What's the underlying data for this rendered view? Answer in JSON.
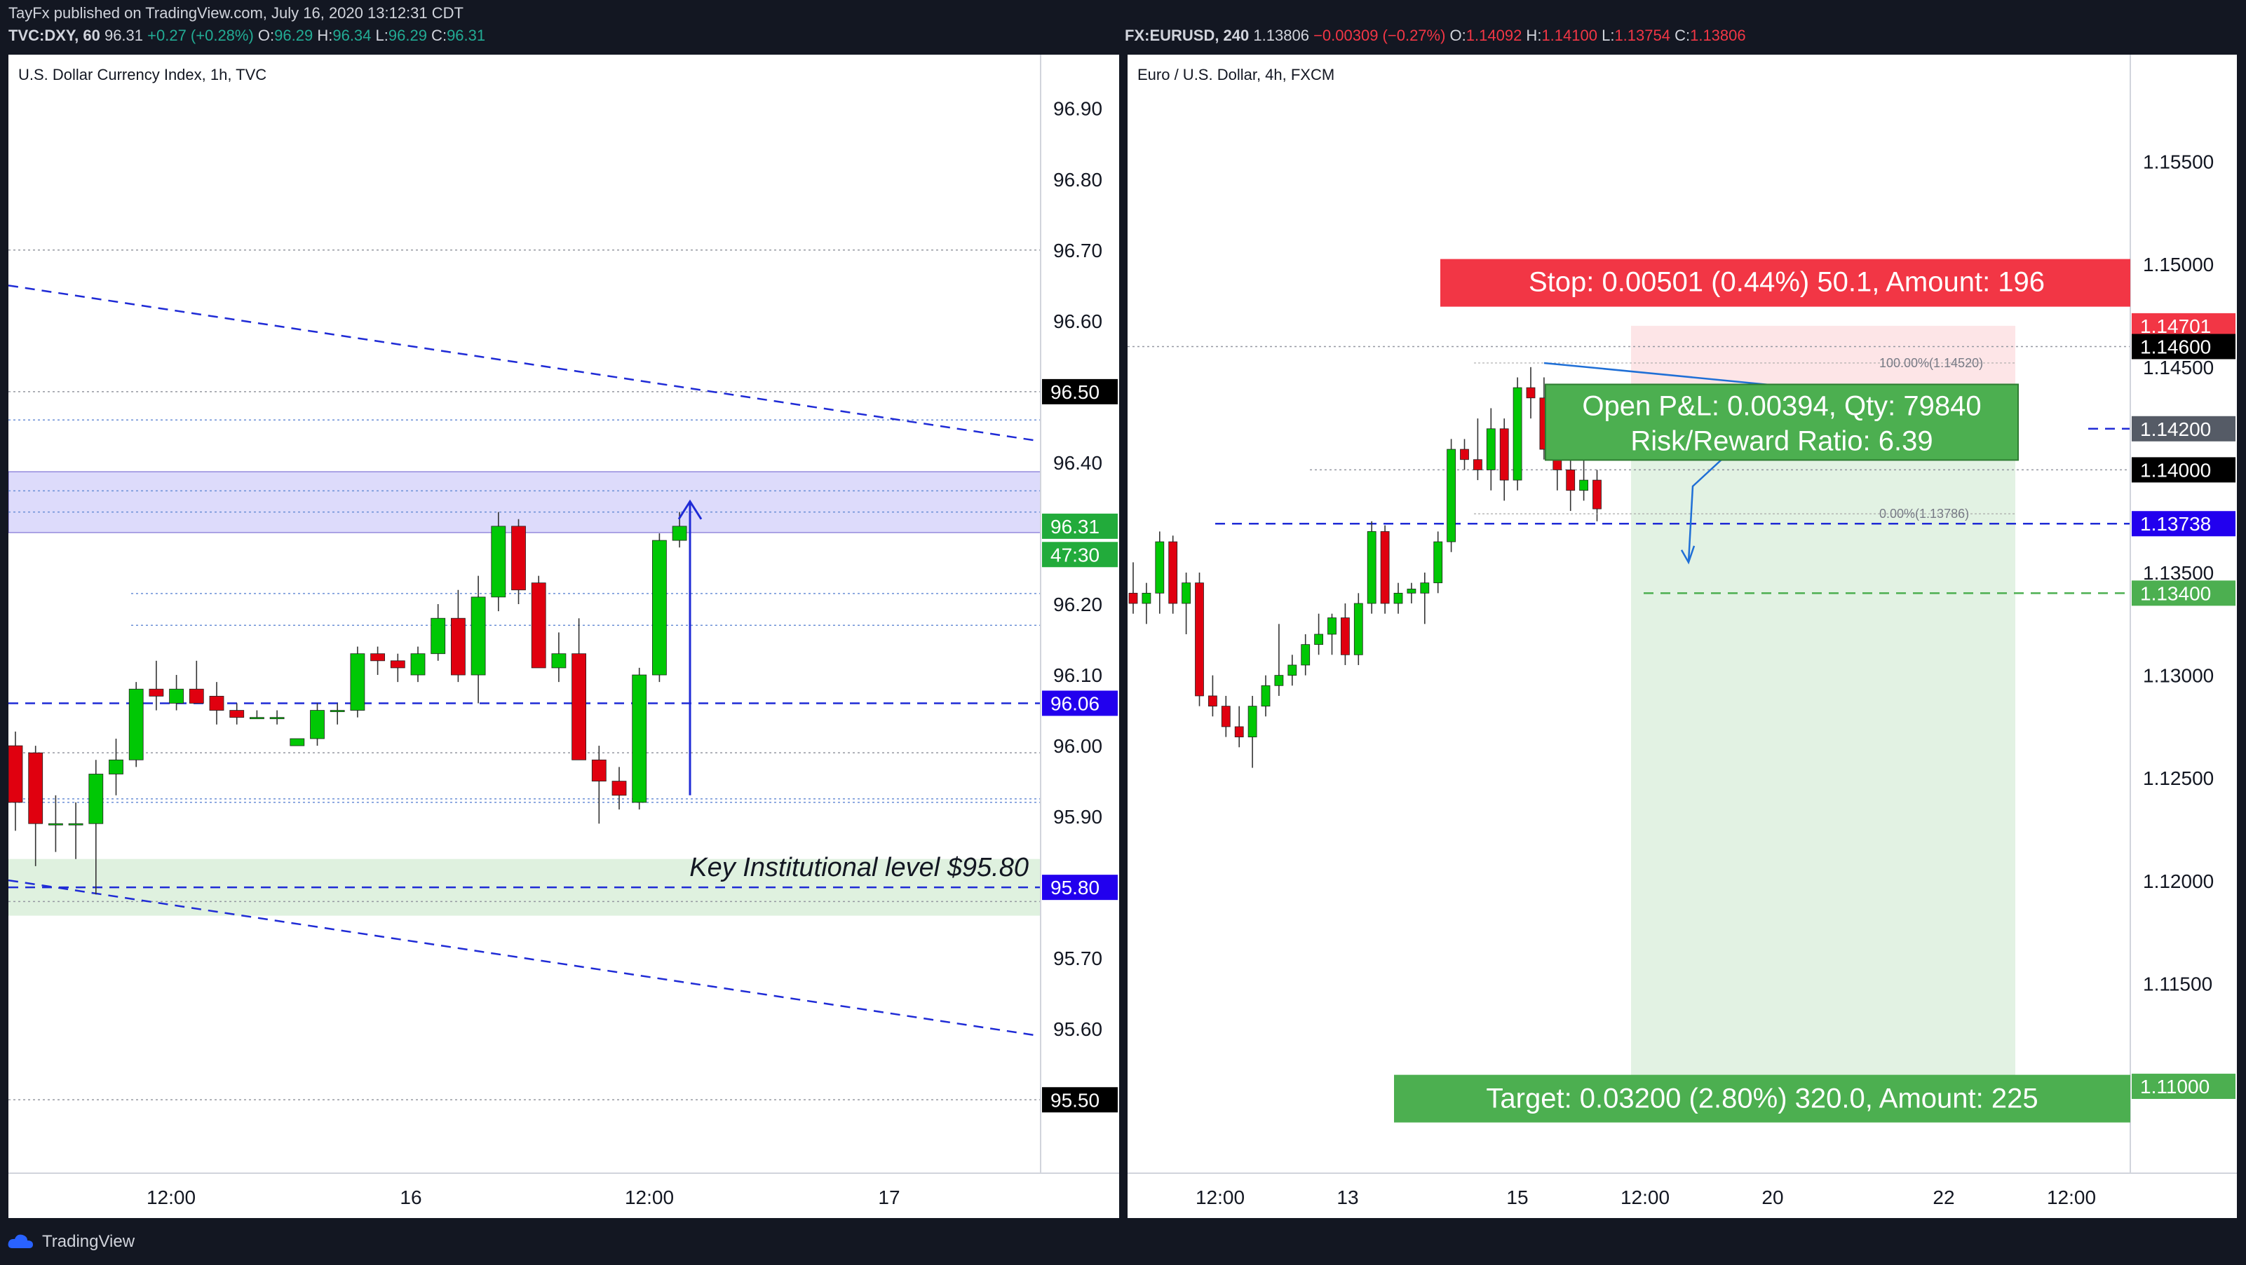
{
  "header": {
    "published": "TayFx published on TradingView.com, July 16, 2020 13:12:31 CDT",
    "left": {
      "symbol": "TVC:DXY, 60",
      "price": "96.31",
      "change": "+0.27 (+0.28%)",
      "o": "96.29",
      "h": "96.34",
      "l": "96.29",
      "c": "96.31"
    },
    "right": {
      "symbol": "FX:EURUSD, 240",
      "price": "1.13806",
      "change": "−0.00309 (−0.27%)",
      "o": "1.14092",
      "h": "1.14100",
      "l": "1.13754",
      "c": "1.13806"
    }
  },
  "footer": {
    "brand": "TradingView"
  },
  "chart_data": [
    {
      "type": "candlestick",
      "title": "U.S. Dollar Currency Index, 1h, TVC",
      "y_ticks": [
        "96.90",
        "96.80",
        "96.70",
        "96.60",
        "96.40",
        "96.20",
        "96.10",
        "96.00",
        "95.90",
        "95.70",
        "95.60"
      ],
      "x_ticks": [
        "12:00",
        "16",
        "12:00",
        "17"
      ],
      "ylim": [
        95.43,
        96.97
      ],
      "price_labels": [
        {
          "text": "96.50",
          "value": 96.5,
          "color": "#000000"
        },
        {
          "text": "96.31",
          "value": 96.31,
          "color": "#22ab3b"
        },
        {
          "text": "47:30",
          "value": 96.27,
          "color": "#22ab3b"
        },
        {
          "text": "96.06",
          "value": 96.06,
          "color": "#2200ee"
        },
        {
          "text": "95.80",
          "value": 95.8,
          "color": "#2200ee"
        },
        {
          "text": "95.50",
          "value": 95.5,
          "color": "#000000"
        }
      ],
      "annotation": "Key Institutional level $95.80",
      "candles": [
        {
          "o": 96.0,
          "h": 96.02,
          "l": 95.88,
          "c": 95.92
        },
        {
          "o": 95.99,
          "h": 96.0,
          "l": 95.83,
          "c": 95.89
        },
        {
          "o": 95.89,
          "h": 95.93,
          "l": 95.85,
          "c": 95.89
        },
        {
          "o": 95.89,
          "h": 95.92,
          "l": 95.84,
          "c": 95.89
        },
        {
          "o": 95.89,
          "h": 95.98,
          "l": 95.79,
          "c": 95.96
        },
        {
          "o": 95.96,
          "h": 96.01,
          "l": 95.93,
          "c": 95.98
        },
        {
          "o": 95.98,
          "h": 96.09,
          "l": 95.97,
          "c": 96.08
        },
        {
          "o": 96.08,
          "h": 96.12,
          "l": 96.05,
          "c": 96.07
        },
        {
          "o": 96.06,
          "h": 96.1,
          "l": 96.05,
          "c": 96.08
        },
        {
          "o": 96.08,
          "h": 96.12,
          "l": 96.06,
          "c": 96.06
        },
        {
          "o": 96.07,
          "h": 96.09,
          "l": 96.03,
          "c": 96.05
        },
        {
          "o": 96.05,
          "h": 96.06,
          "l": 96.03,
          "c": 96.04
        },
        {
          "o": 96.04,
          "h": 96.05,
          "l": 96.04,
          "c": 96.04
        },
        {
          "o": 96.04,
          "h": 96.05,
          "l": 96.03,
          "c": 96.04
        },
        {
          "o": 96.0,
          "h": 96.01,
          "l": 96.0,
          "c": 96.01
        },
        {
          "o": 96.01,
          "h": 96.06,
          "l": 96.0,
          "c": 96.05
        },
        {
          "o": 96.05,
          "h": 96.06,
          "l": 96.03,
          "c": 96.05
        },
        {
          "o": 96.05,
          "h": 96.14,
          "l": 96.04,
          "c": 96.13
        },
        {
          "o": 96.13,
          "h": 96.14,
          "l": 96.1,
          "c": 96.12
        },
        {
          "o": 96.12,
          "h": 96.13,
          "l": 96.09,
          "c": 96.11
        },
        {
          "o": 96.1,
          "h": 96.14,
          "l": 96.09,
          "c": 96.13
        },
        {
          "o": 96.13,
          "h": 96.2,
          "l": 96.12,
          "c": 96.18
        },
        {
          "o": 96.18,
          "h": 96.22,
          "l": 96.09,
          "c": 96.1
        },
        {
          "o": 96.1,
          "h": 96.24,
          "l": 96.06,
          "c": 96.21
        },
        {
          "o": 96.21,
          "h": 96.33,
          "l": 96.19,
          "c": 96.31
        },
        {
          "o": 96.31,
          "h": 96.32,
          "l": 96.2,
          "c": 96.22
        },
        {
          "o": 96.23,
          "h": 96.24,
          "l": 96.11,
          "c": 96.11
        },
        {
          "o": 96.11,
          "h": 96.16,
          "l": 96.09,
          "c": 96.13
        },
        {
          "o": 96.13,
          "h": 96.18,
          "l": 95.98,
          "c": 95.98
        },
        {
          "o": 95.98,
          "h": 96.0,
          "l": 95.89,
          "c": 95.95
        },
        {
          "o": 95.95,
          "h": 95.97,
          "l": 95.91,
          "c": 95.93
        },
        {
          "o": 95.92,
          "h": 96.11,
          "l": 95.91,
          "c": 96.1
        },
        {
          "o": 96.1,
          "h": 96.3,
          "l": 96.09,
          "c": 96.29
        },
        {
          "o": 96.29,
          "h": 96.33,
          "l": 96.28,
          "c": 96.31
        }
      ]
    },
    {
      "type": "candlestick",
      "title": "Euro / U.S. Dollar, 4h, FXCM",
      "y_ticks": [
        "1.15500",
        "1.15000",
        "1.14500",
        "1.13500",
        "1.13000",
        "1.12500",
        "1.12000",
        "1.11500"
      ],
      "x_ticks": [
        "12:00",
        "13",
        "15",
        "12:00",
        "20",
        "22",
        "12:00"
      ],
      "ylim": [
        1.107,
        1.16
      ],
      "price_labels": [
        {
          "text": "1.14701",
          "value": 1.14701,
          "color": "#f23645"
        },
        {
          "text": "1.14600",
          "value": 1.146,
          "color": "#000000"
        },
        {
          "text": "1.14200",
          "value": 1.142,
          "color": "#555b66"
        },
        {
          "text": "1.14000",
          "value": 1.14,
          "color": "#000000"
        },
        {
          "text": "1.13738",
          "value": 1.13738,
          "color": "#2200ee"
        },
        {
          "text": "1.13400",
          "value": 1.134,
          "color": "#4caf50"
        },
        {
          "text": "1.11000",
          "value": 1.11,
          "color": "#4caf50"
        }
      ],
      "fib": [
        {
          "text": "100.00%(1.14520)",
          "value": 1.1452
        },
        {
          "text": "0.00%(1.13786)",
          "value": 1.13786
        }
      ],
      "position": {
        "stop_label": "Stop: 0.00501 (0.44%) 50.1, Amount: 196",
        "pnl_line1": "Open P&L: 0.00394, Qty: 79840",
        "pnl_line2": "Risk/Reward Ratio: 6.39",
        "target_label": "Target: 0.03200 (2.80%) 320.0, Amount: 225",
        "entry": 1.142,
        "stop": 1.14701,
        "target": 1.11
      },
      "candles": [
        {
          "o": 1.134,
          "h": 1.1355,
          "l": 1.133,
          "c": 1.1335
        },
        {
          "o": 1.1335,
          "h": 1.1345,
          "l": 1.1325,
          "c": 1.134
        },
        {
          "o": 1.134,
          "h": 1.137,
          "l": 1.133,
          "c": 1.1365
        },
        {
          "o": 1.1365,
          "h": 1.1368,
          "l": 1.133,
          "c": 1.1335
        },
        {
          "o": 1.1335,
          "h": 1.135,
          "l": 1.132,
          "c": 1.1345
        },
        {
          "o": 1.1345,
          "h": 1.135,
          "l": 1.1285,
          "c": 1.129
        },
        {
          "o": 1.129,
          "h": 1.13,
          "l": 1.128,
          "c": 1.1285
        },
        {
          "o": 1.1285,
          "h": 1.129,
          "l": 1.127,
          "c": 1.1275
        },
        {
          "o": 1.1275,
          "h": 1.1285,
          "l": 1.1265,
          "c": 1.127
        },
        {
          "o": 1.127,
          "h": 1.129,
          "l": 1.1255,
          "c": 1.1285
        },
        {
          "o": 1.1285,
          "h": 1.13,
          "l": 1.128,
          "c": 1.1295
        },
        {
          "o": 1.1295,
          "h": 1.1325,
          "l": 1.129,
          "c": 1.13
        },
        {
          "o": 1.13,
          "h": 1.131,
          "l": 1.1295,
          "c": 1.1305
        },
        {
          "o": 1.1305,
          "h": 1.132,
          "l": 1.13,
          "c": 1.1315
        },
        {
          "o": 1.1315,
          "h": 1.133,
          "l": 1.131,
          "c": 1.132
        },
        {
          "o": 1.132,
          "h": 1.133,
          "l": 1.131,
          "c": 1.1328
        },
        {
          "o": 1.1328,
          "h": 1.1335,
          "l": 1.1305,
          "c": 1.131
        },
        {
          "o": 1.131,
          "h": 1.134,
          "l": 1.1305,
          "c": 1.1335
        },
        {
          "o": 1.1335,
          "h": 1.1375,
          "l": 1.133,
          "c": 1.137
        },
        {
          "o": 1.137,
          "h": 1.1373,
          "l": 1.133,
          "c": 1.1335
        },
        {
          "o": 1.1335,
          "h": 1.1345,
          "l": 1.133,
          "c": 1.134
        },
        {
          "o": 1.134,
          "h": 1.1345,
          "l": 1.1335,
          "c": 1.1342
        },
        {
          "o": 1.134,
          "h": 1.135,
          "l": 1.1325,
          "c": 1.1345
        },
        {
          "o": 1.1345,
          "h": 1.137,
          "l": 1.134,
          "c": 1.1365
        },
        {
          "o": 1.1365,
          "h": 1.1415,
          "l": 1.136,
          "c": 1.141
        },
        {
          "o": 1.141,
          "h": 1.1415,
          "l": 1.14,
          "c": 1.1405
        },
        {
          "o": 1.1405,
          "h": 1.1425,
          "l": 1.1395,
          "c": 1.14
        },
        {
          "o": 1.14,
          "h": 1.143,
          "l": 1.139,
          "c": 1.142
        },
        {
          "o": 1.142,
          "h": 1.1425,
          "l": 1.1385,
          "c": 1.1395
        },
        {
          "o": 1.1395,
          "h": 1.1445,
          "l": 1.139,
          "c": 1.144
        },
        {
          "o": 1.144,
          "h": 1.145,
          "l": 1.1425,
          "c": 1.1435
        },
        {
          "o": 1.1435,
          "h": 1.1445,
          "l": 1.1405,
          "c": 1.141
        },
        {
          "o": 1.141,
          "h": 1.142,
          "l": 1.139,
          "c": 1.14
        },
        {
          "o": 1.14,
          "h": 1.1405,
          "l": 1.138,
          "c": 1.139
        },
        {
          "o": 1.139,
          "h": 1.141,
          "l": 1.1385,
          "c": 1.1395
        },
        {
          "o": 1.1395,
          "h": 1.14,
          "l": 1.1375,
          "c": 1.1381
        }
      ]
    }
  ]
}
